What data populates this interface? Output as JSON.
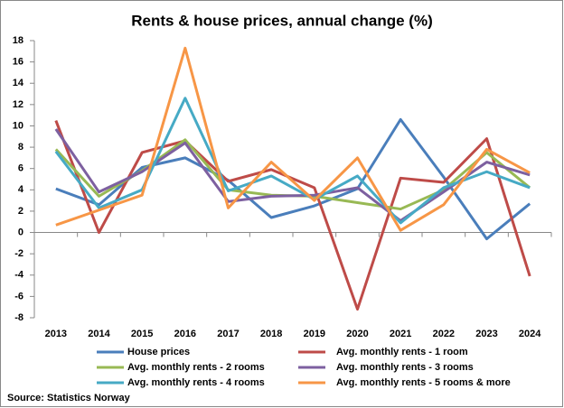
{
  "chart_data": {
    "type": "line",
    "title": "Rents & house prices, annual change (%)",
    "categories": [
      "2013",
      "2014",
      "2015",
      "2016",
      "2017",
      "2018",
      "2019",
      "2020",
      "2021",
      "2022",
      "2023",
      "2024"
    ],
    "series": [
      {
        "name": "House prices",
        "color": "#4a7ebb",
        "values": [
          4.1,
          2.6,
          6.1,
          7.0,
          4.9,
          1.4,
          2.5,
          4.1,
          10.6,
          5.2,
          -0.6,
          2.7
        ]
      },
      {
        "name": "Avg. monthly rents - 1 room",
        "color": "#be4b48",
        "values": [
          10.5,
          0.0,
          7.5,
          8.6,
          4.8,
          5.9,
          4.2,
          -7.2,
          5.1,
          4.7,
          8.8,
          -4.1
        ]
      },
      {
        "name": "Avg. monthly rents - 2 rooms",
        "color": "#98b954",
        "values": [
          7.8,
          3.4,
          5.8,
          8.7,
          4.0,
          3.5,
          3.4,
          2.8,
          2.2,
          4.0,
          7.5,
          4.2
        ]
      },
      {
        "name": "Avg. monthly rents - 3 rooms",
        "color": "#7d60a0",
        "values": [
          9.7,
          3.8,
          5.7,
          8.4,
          2.9,
          3.4,
          3.5,
          4.2,
          1.1,
          3.8,
          6.6,
          5.4
        ]
      },
      {
        "name": "Avg. monthly rents - 4 rooms",
        "color": "#46aac5",
        "values": [
          7.6,
          2.3,
          4.0,
          12.6,
          3.9,
          5.3,
          3.1,
          5.3,
          0.9,
          4.2,
          5.7,
          4.2
        ]
      },
      {
        "name": "Avg. monthly rents - 5 rooms & more",
        "color": "#f79646",
        "values": [
          0.7,
          2.1,
          3.5,
          17.3,
          2.3,
          6.6,
          3.0,
          7.0,
          0.2,
          2.6,
          7.8,
          5.6
        ]
      }
    ],
    "ylim": [
      -8,
      18
    ],
    "yticks": [
      -8,
      -6,
      -4,
      -2,
      0,
      2,
      4,
      6,
      8,
      10,
      12,
      14,
      16,
      18
    ],
    "source": "Source: Statistics  Norway"
  }
}
